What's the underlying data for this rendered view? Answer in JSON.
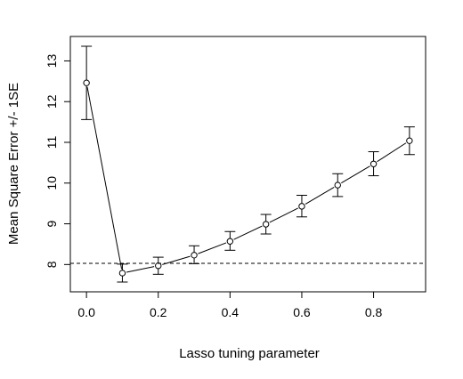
{
  "chart_data": {
    "type": "scatter",
    "title": "",
    "xlabel": "Lasso tuning parameter",
    "ylabel": "Mean Square Error +/- 1SE",
    "xlim": [
      -0.045,
      0.945
    ],
    "ylim": [
      7.33,
      13.6
    ],
    "x_ticks": [
      0.0,
      0.2,
      0.4,
      0.6,
      0.8
    ],
    "x_tick_labels": [
      "0.0",
      "0.2",
      "0.4",
      "0.6",
      "0.8"
    ],
    "y_ticks": [
      8,
      9,
      10,
      11,
      12,
      13
    ],
    "y_tick_labels": [
      "8",
      "9",
      "10",
      "11",
      "12",
      "13"
    ],
    "grid": false,
    "legend": "none",
    "series": [
      {
        "x": [
          0.0,
          0.1,
          0.2,
          0.3,
          0.4,
          0.5,
          0.6,
          0.7,
          0.8,
          0.9
        ],
        "y": [
          12.46,
          7.79,
          7.97,
          8.23,
          8.57,
          8.99,
          9.43,
          9.95,
          10.47,
          11.04
        ],
        "error_lower": [
          11.56,
          7.57,
          7.76,
          8.02,
          8.35,
          8.75,
          9.17,
          9.67,
          10.18,
          10.7
        ],
        "error_upper": [
          13.36,
          8.01,
          8.18,
          8.46,
          8.81,
          9.23,
          9.7,
          10.23,
          10.77,
          11.38
        ],
        "line": "solid",
        "marker": "open-circle"
      }
    ],
    "reference_line": {
      "y": 8.03,
      "style": "dashed",
      "orientation": "horizontal"
    }
  }
}
